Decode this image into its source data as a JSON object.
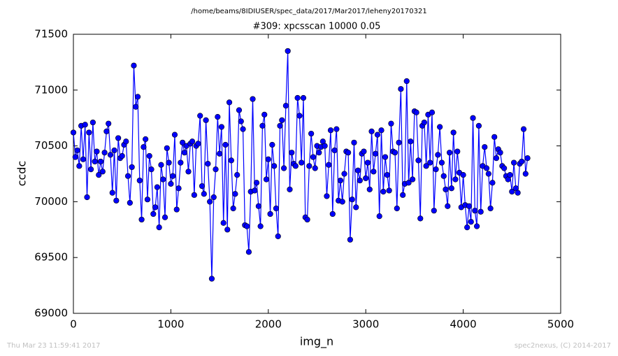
{
  "chart_data": {
    "type": "line",
    "suptitle": "/home/beams/8IDIUSER/spec_data/2017/Mar2017/leheny20170321",
    "title": "#309: xpcsscan 10000 0.05",
    "xlabel": "img_n",
    "ylabel": "ccdc",
    "footer_left": "Thu Mar 23 11:59:41 2017",
    "footer_right": "spec2nexus, (C) 2014-2017",
    "xlim": [
      0,
      5000
    ],
    "xticks": [
      0,
      1000,
      2000,
      3000,
      4000,
      5000
    ],
    "ylim": [
      69000,
      71500
    ],
    "yticks": [
      69000,
      69500,
      70000,
      70500,
      71000,
      71500
    ],
    "x": [
      0,
      20,
      40,
      60,
      80,
      100,
      120,
      140,
      160,
      180,
      200,
      220,
      240,
      260,
      280,
      300,
      320,
      340,
      360,
      380,
      400,
      420,
      440,
      460,
      480,
      500,
      520,
      540,
      560,
      580,
      600,
      620,
      640,
      660,
      680,
      700,
      720,
      740,
      760,
      780,
      800,
      820,
      840,
      860,
      880,
      900,
      920,
      940,
      960,
      980,
      1000,
      1020,
      1040,
      1060,
      1080,
      1100,
      1120,
      1140,
      1160,
      1180,
      1200,
      1220,
      1240,
      1260,
      1280,
      1300,
      1320,
      1340,
      1360,
      1380,
      1400,
      1420,
      1440,
      1460,
      1480,
      1500,
      1520,
      1540,
      1560,
      1580,
      1600,
      1620,
      1640,
      1660,
      1680,
      1700,
      1720,
      1740,
      1760,
      1780,
      1800,
      1820,
      1840,
      1860,
      1880,
      1900,
      1920,
      1940,
      1960,
      1980,
      2000,
      2020,
      2040,
      2060,
      2080,
      2100,
      2120,
      2140,
      2160,
      2180,
      2200,
      2220,
      2240,
      2260,
      2280,
      2300,
      2320,
      2340,
      2360,
      2380,
      2400,
      2420,
      2440,
      2460,
      2480,
      2500,
      2520,
      2540,
      2560,
      2580,
      2600,
      2620,
      2640,
      2660,
      2680,
      2700,
      2720,
      2740,
      2760,
      2780,
      2800,
      2820,
      2840,
      2860,
      2880,
      2900,
      2920,
      2940,
      2960,
      2980,
      3000,
      3020,
      3040,
      3060,
      3080,
      3100,
      3120,
      3140,
      3160,
      3180,
      3200,
      3220,
      3240,
      3260,
      3280,
      3300,
      3320,
      3340,
      3360,
      3380,
      3400,
      3420,
      3440,
      3460,
      3480,
      3500,
      3520,
      3540,
      3560,
      3580,
      3600,
      3620,
      3640,
      3660,
      3680,
      3700,
      3720,
      3740,
      3760,
      3780,
      3800,
      3820,
      3840,
      3860,
      3880,
      3900,
      3920,
      3940,
      3960,
      3980,
      4000,
      4020,
      4040,
      4060,
      4080,
      4100,
      4120,
      4140,
      4160,
      4180,
      4200,
      4220,
      4240,
      4260,
      4280,
      4300,
      4320,
      4340,
      4360,
      4380,
      4400,
      4420,
      4440,
      4460,
      4480,
      4500,
      4520,
      4540,
      4560,
      4580,
      4600,
      4620,
      4640,
      4660
    ],
    "series": [
      {
        "color": "#0000ff",
        "values": [
          70620,
          70400,
          70460,
          70320,
          70680,
          70380,
          70690,
          70040,
          70620,
          70290,
          70710,
          70360,
          70450,
          70240,
          70360,
          70270,
          70440,
          70630,
          70700,
          70420,
          70080,
          70460,
          70010,
          70570,
          70390,
          70410,
          70510,
          70540,
          70230,
          69990,
          70310,
          71220,
          70850,
          70940,
          70190,
          69840,
          70490,
          70560,
          70020,
          70410,
          70290,
          69890,
          69950,
          70130,
          69770,
          70330,
          70200,
          69860,
          70480,
          70350,
          70160,
          70230,
          70600,
          69930,
          70120,
          70350,
          70530,
          70440,
          70500,
          70270,
          70520,
          70540,
          70060,
          70500,
          70520,
          70770,
          70140,
          70070,
          70730,
          70340,
          70000,
          69310,
          70040,
          70290,
          70760,
          70430,
          70670,
          69810,
          70510,
          69750,
          70890,
          70370,
          69940,
          70070,
          70240,
          70820,
          70720,
          70650,
          69790,
          69780,
          69550,
          70090,
          70920,
          70100,
          70170,
          69960,
          69780,
          70680,
          70780,
          70200,
          70380,
          69890,
          70510,
          70320,
          69940,
          69690,
          70680,
          70730,
          70300,
          70860,
          71350,
          70110,
          70440,
          70340,
          70320,
          70930,
          70770,
          70350,
          70930,
          69860,
          69840,
          70320,
          70610,
          70400,
          70300,
          70500,
          70440,
          70490,
          70540,
          70500,
          70050,
          70330,
          70640,
          69890,
          70460,
          70650,
          70010,
          70190,
          70000,
          70250,
          70450,
          70440,
          69660,
          70020,
          70530,
          69950,
          70280,
          70190,
          70430,
          70450,
          70210,
          70350,
          70110,
          70630,
          70270,
          70430,
          70600,
          69870,
          70640,
          70090,
          70400,
          70240,
          70100,
          70700,
          70450,
          70440,
          69940,
          70530,
          71010,
          70060,
          70160,
          71080,
          70170,
          70540,
          70200,
          70810,
          70800,
          70370,
          69850,
          70680,
          70710,
          70320,
          70780,
          70350,
          70800,
          69920,
          70290,
          70420,
          70670,
          70350,
          70230,
          70110,
          69960,
          70440,
          70120,
          70620,
          70200,
          70450,
          70260,
          69950,
          70240,
          69970,
          69770,
          69960,
          69820,
          70750,
          69920,
          69780,
          70680,
          69910,
          70320,
          70490,
          70300,
          70250,
          69940,
          70170,
          70580,
          70390,
          70470,
          70440,
          70320,
          70300,
          70230,
          70200,
          70240,
          70090,
          70350,
          70120,
          70080,
          70340,
          70360,
          70650,
          70250,
          70390
        ]
      }
    ]
  }
}
